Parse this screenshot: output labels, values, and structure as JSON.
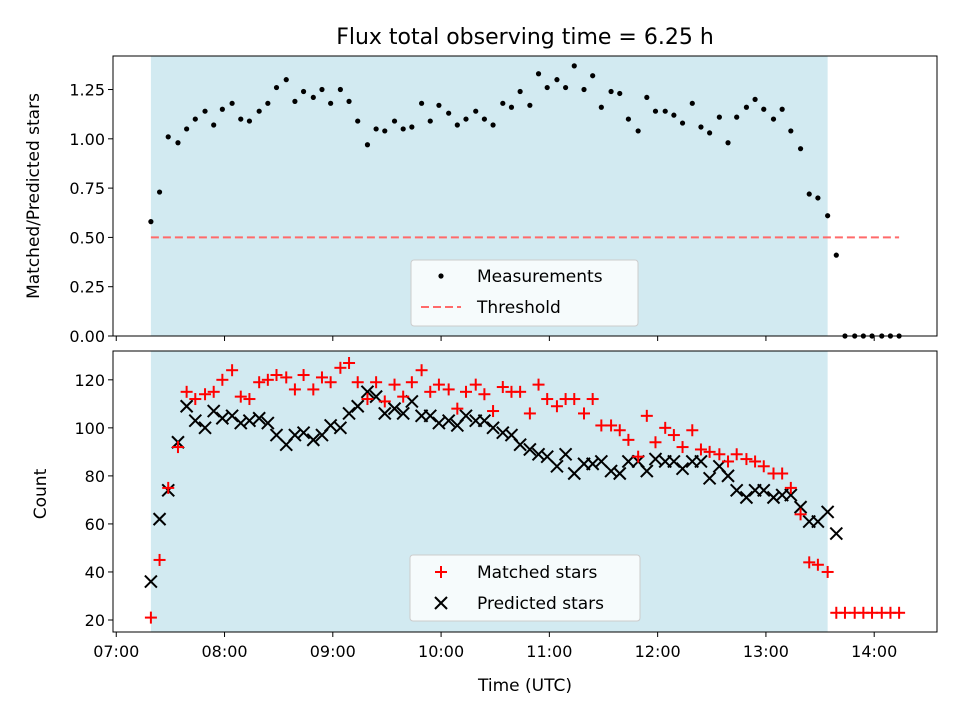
{
  "title": "Flux total observing time = 6.25 h",
  "chart_data": [
    {
      "type": "scatter",
      "panel": "top",
      "ylabel": "Matched/Predicted stars",
      "ylim": [
        0,
        1.42
      ],
      "yticks": [
        0.0,
        0.25,
        0.5,
        0.75,
        1.0,
        1.25
      ],
      "yticklabels": [
        "0.00",
        "0.25",
        "0.50",
        "0.75",
        "1.00",
        "1.25"
      ],
      "xlim": [
        6.97,
        14.58
      ],
      "shaded_interval": [
        7.32,
        13.57
      ],
      "shade_color": "#add8e6",
      "legend_position": "bottom-center",
      "series": [
        {
          "name": "Measurements",
          "marker": "dot",
          "color": "#000000",
          "x": [
            7.32,
            7.4,
            7.48,
            7.57,
            7.65,
            7.73,
            7.82,
            7.9,
            7.98,
            8.07,
            8.15,
            8.23,
            8.32,
            8.4,
            8.48,
            8.57,
            8.65,
            8.73,
            8.82,
            8.9,
            8.98,
            9.07,
            9.15,
            9.23,
            9.32,
            9.4,
            9.48,
            9.57,
            9.65,
            9.73,
            9.82,
            9.9,
            9.98,
            10.07,
            10.15,
            10.23,
            10.32,
            10.4,
            10.48,
            10.57,
            10.65,
            10.73,
            10.82,
            10.9,
            10.98,
            11.07,
            11.15,
            11.23,
            11.32,
            11.4,
            11.48,
            11.57,
            11.65,
            11.73,
            11.82,
            11.9,
            11.98,
            12.07,
            12.15,
            12.23,
            12.32,
            12.4,
            12.48,
            12.57,
            12.65,
            12.73,
            12.82,
            12.9,
            12.98,
            13.07,
            13.15,
            13.23,
            13.32,
            13.4,
            13.48,
            13.57,
            13.65,
            13.73,
            13.82,
            13.9,
            13.98,
            14.07,
            14.15,
            14.23
          ],
          "y": [
            0.58,
            0.73,
            1.01,
            0.98,
            1.05,
            1.1,
            1.14,
            1.07,
            1.15,
            1.18,
            1.1,
            1.09,
            1.14,
            1.18,
            1.26,
            1.3,
            1.19,
            1.24,
            1.21,
            1.25,
            1.18,
            1.25,
            1.19,
            1.09,
            0.97,
            1.05,
            1.04,
            1.09,
            1.05,
            1.06,
            1.18,
            1.09,
            1.17,
            1.13,
            1.07,
            1.1,
            1.14,
            1.1,
            1.07,
            1.18,
            1.16,
            1.24,
            1.17,
            1.33,
            1.26,
            1.3,
            1.26,
            1.37,
            1.25,
            1.32,
            1.16,
            1.24,
            1.23,
            1.1,
            1.04,
            1.21,
            1.14,
            1.14,
            1.12,
            1.08,
            1.18,
            1.06,
            1.03,
            1.11,
            0.98,
            1.11,
            1.16,
            1.2,
            1.15,
            1.1,
            1.15,
            1.04,
            0.95,
            0.72,
            0.7,
            0.61,
            0.41,
            0.0,
            0.0,
            0.0,
            0.0,
            0.0,
            0.0,
            0.0
          ]
        },
        {
          "name": "Threshold",
          "marker": "dashed-line",
          "color": "#ff6a6a",
          "x": [
            7.32,
            14.23
          ],
          "y": [
            0.5,
            0.5
          ]
        }
      ]
    },
    {
      "type": "scatter",
      "panel": "bottom",
      "ylabel": "Count",
      "xlabel": "Time (UTC)",
      "ylim": [
        15,
        132
      ],
      "yticks": [
        20,
        40,
        60,
        80,
        100,
        120
      ],
      "yticklabels": [
        "20",
        "40",
        "60",
        "80",
        "100",
        "120"
      ],
      "xlim": [
        6.97,
        14.58
      ],
      "xticks": [
        7,
        8,
        9,
        10,
        11,
        12,
        13,
        14
      ],
      "xticklabels": [
        "07:00",
        "08:00",
        "09:00",
        "10:00",
        "11:00",
        "12:00",
        "13:00",
        "14:00"
      ],
      "shaded_interval": [
        7.32,
        13.57
      ],
      "shade_color": "#add8e6",
      "legend_position": "bottom-center",
      "series": [
        {
          "name": "Matched stars",
          "marker": "plus",
          "color": "#ff0000",
          "x": [
            7.32,
            7.4,
            7.48,
            7.57,
            7.65,
            7.73,
            7.82,
            7.9,
            7.98,
            8.07,
            8.15,
            8.23,
            8.32,
            8.4,
            8.48,
            8.57,
            8.65,
            8.73,
            8.82,
            8.9,
            8.98,
            9.07,
            9.15,
            9.23,
            9.32,
            9.4,
            9.48,
            9.57,
            9.65,
            9.73,
            9.82,
            9.9,
            9.98,
            10.07,
            10.15,
            10.23,
            10.32,
            10.4,
            10.48,
            10.57,
            10.65,
            10.73,
            10.82,
            10.9,
            10.98,
            11.07,
            11.15,
            11.23,
            11.32,
            11.4,
            11.48,
            11.57,
            11.65,
            11.73,
            11.82,
            11.9,
            11.98,
            12.07,
            12.15,
            12.23,
            12.32,
            12.4,
            12.48,
            12.57,
            12.65,
            12.73,
            12.82,
            12.9,
            12.98,
            13.07,
            13.15,
            13.23,
            13.32,
            13.4,
            13.48,
            13.57,
            13.65,
            13.73,
            13.82,
            13.9,
            13.98,
            14.07,
            14.15,
            14.23
          ],
          "y": [
            21,
            45,
            75,
            92,
            115,
            112,
            114,
            115,
            120,
            124,
            113,
            112,
            119,
            120,
            122,
            121,
            116,
            122,
            116,
            121,
            119,
            125,
            127,
            119,
            112,
            119,
            111,
            118,
            113,
            119,
            124,
            115,
            118,
            116,
            108,
            115,
            118,
            114,
            107,
            117,
            115,
            115,
            106,
            118,
            112,
            109,
            112,
            112,
            106,
            112,
            101,
            101,
            99,
            95,
            88,
            105,
            94,
            100,
            97,
            92,
            99,
            91,
            90,
            89,
            86,
            89,
            87,
            86,
            84,
            81,
            81,
            75,
            64,
            44,
            43,
            40,
            23,
            23,
            23,
            23,
            23,
            23,
            23,
            23
          ]
        },
        {
          "name": "Predicted stars",
          "marker": "x",
          "color": "#000000",
          "x": [
            7.32,
            7.4,
            7.48,
            7.57,
            7.65,
            7.73,
            7.82,
            7.9,
            7.98,
            8.07,
            8.15,
            8.23,
            8.32,
            8.4,
            8.48,
            8.57,
            8.65,
            8.73,
            8.82,
            8.9,
            8.98,
            9.07,
            9.15,
            9.23,
            9.32,
            9.4,
            9.48,
            9.57,
            9.65,
            9.73,
            9.82,
            9.9,
            9.98,
            10.07,
            10.15,
            10.23,
            10.32,
            10.4,
            10.48,
            10.57,
            10.65,
            10.73,
            10.82,
            10.9,
            10.98,
            11.07,
            11.15,
            11.23,
            11.32,
            11.4,
            11.48,
            11.57,
            11.65,
            11.73,
            11.82,
            11.9,
            11.98,
            12.07,
            12.15,
            12.23,
            12.32,
            12.4,
            12.48,
            12.57,
            12.65,
            12.73,
            12.82,
            12.9,
            12.98,
            13.07,
            13.15,
            13.23,
            13.32,
            13.4,
            13.48,
            13.57,
            13.65
          ],
          "y": [
            36,
            62,
            74,
            94,
            109,
            103,
            100,
            107,
            104,
            105,
            102,
            103,
            104,
            102,
            97,
            93,
            97,
            98,
            95,
            97,
            101,
            100,
            106,
            109,
            115,
            113,
            106,
            108,
            106,
            111,
            105,
            105,
            102,
            103,
            101,
            105,
            103,
            103,
            100,
            98,
            97,
            93,
            91,
            89,
            88,
            84,
            89,
            81,
            85,
            85,
            86,
            82,
            81,
            86,
            86,
            82,
            87,
            86,
            86,
            83,
            86,
            86,
            79,
            84,
            80,
            74,
            71,
            74,
            74,
            71,
            72,
            72,
            67,
            61,
            61,
            65,
            56
          ]
        }
      ]
    }
  ]
}
